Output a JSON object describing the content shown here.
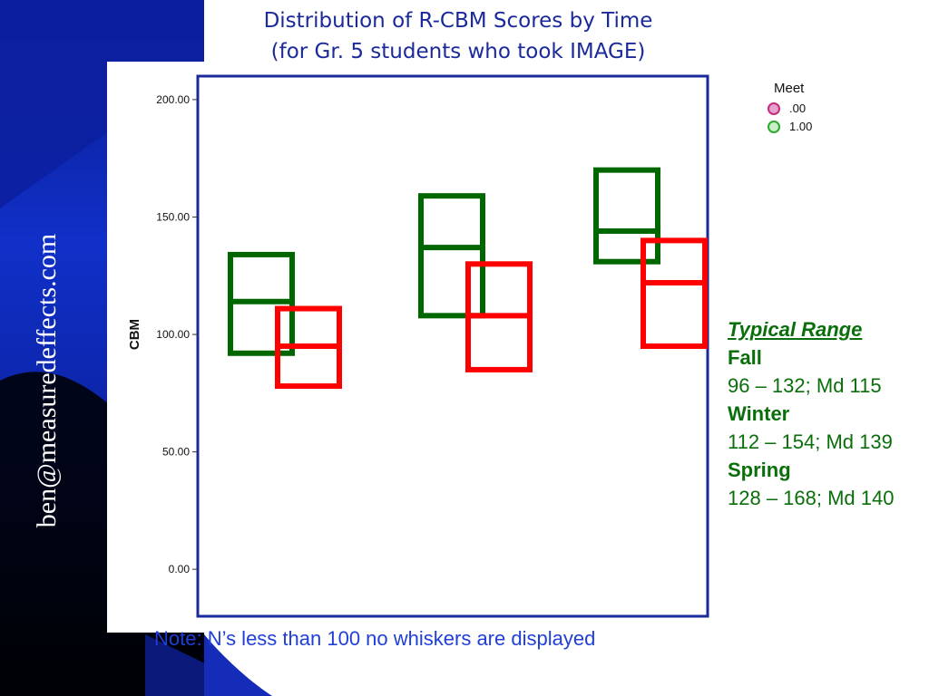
{
  "slide": {
    "title_line1": "Distribution of R-CBM Scores by Time",
    "title_line2": "(for Gr. 5 students who took IMAGE)",
    "side_text": "ben@measuredeffects.com",
    "note": "Note: N’s less than 100 no whiskers are displayed",
    "colors": {
      "background_dark": "#000000",
      "background_blue": "#1030c8",
      "title": "#1a2a9a",
      "note": "#1f3fd8",
      "typical_range": "#0a6e0a",
      "plot_frame": "#1a2a9a"
    }
  },
  "legend": {
    "title": "Meet",
    "items": [
      {
        "label": ".00",
        "color": "#ff0000"
      },
      {
        "label": "1.00",
        "color": "#006600"
      }
    ]
  },
  "typical_range": {
    "heading": "Typical Range",
    "seasons": [
      {
        "name": "Fall",
        "range": "96 – 132; Md 115"
      },
      {
        "name": "Winter",
        "range": "112 – 154; Md 139"
      },
      {
        "name": "Spring",
        "range": "128 – 168; Md 140"
      }
    ]
  },
  "chart_data": {
    "type": "boxplot",
    "title": "",
    "xlabel": "",
    "ylabel": "CBM",
    "ylim": [
      -20,
      210
    ],
    "yticks": [
      "0.00",
      "50.00",
      "100.00",
      "150.00",
      "200.00"
    ],
    "grid": false,
    "legend_placement": "top-right, outside plot",
    "whiskers": false,
    "series": [
      {
        "name": "1.00",
        "color": "#006600",
        "boxes": [
          {
            "q1": 92,
            "median": 114,
            "q3": 134
          },
          {
            "q1": 108,
            "median": 137,
            "q3": 159
          },
          {
            "q1": 131,
            "median": 144,
            "q3": 170
          }
        ]
      },
      {
        "name": ".00",
        "color": "#ff0000",
        "boxes": [
          {
            "q1": 78,
            "median": 95,
            "q3": 111
          },
          {
            "q1": 85,
            "median": 108,
            "q3": 130
          },
          {
            "q1": 95,
            "median": 122,
            "q3": 140
          }
        ]
      }
    ]
  }
}
